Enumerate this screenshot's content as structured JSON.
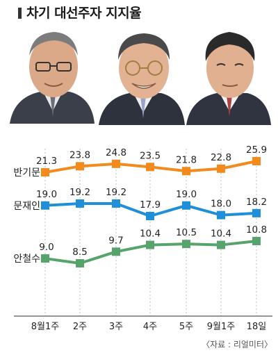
{
  "chart_data": {
    "type": "line",
    "title": "차기 대선주자 지지율",
    "source": "〈자료 : 리얼미터〉",
    "categories": [
      "8월1주",
      "2주",
      "3주",
      "4주",
      "5주",
      "9월1주",
      "18일"
    ],
    "ylim": [
      0,
      30
    ],
    "grid": "vertical-dashed",
    "series": [
      {
        "name": "반기문",
        "color": "#F28A1E",
        "values": [
          21.3,
          23.8,
          24.8,
          23.5,
          21.8,
          22.8,
          25.9
        ]
      },
      {
        "name": "문재인",
        "color": "#1E8FD8",
        "values": [
          19.0,
          19.2,
          19.2,
          17.9,
          19.0,
          18.0,
          18.2
        ]
      },
      {
        "name": "안철수",
        "color": "#56A36C",
        "values": [
          9.0,
          8.5,
          9.7,
          10.4,
          10.5,
          10.4,
          10.8
        ]
      }
    ],
    "labels": [
      [
        "21.3",
        "23.8",
        "24.8",
        "23.5",
        "21.8",
        "22.8",
        "25.9"
      ],
      [
        "19.0",
        "19.2",
        "19.2",
        "17.9",
        "19.0",
        "18.0",
        "18.2"
      ],
      [
        "9.0",
        "8.5",
        "9.7",
        "10.4",
        "10.5",
        "10.4",
        "10.8"
      ]
    ]
  }
}
